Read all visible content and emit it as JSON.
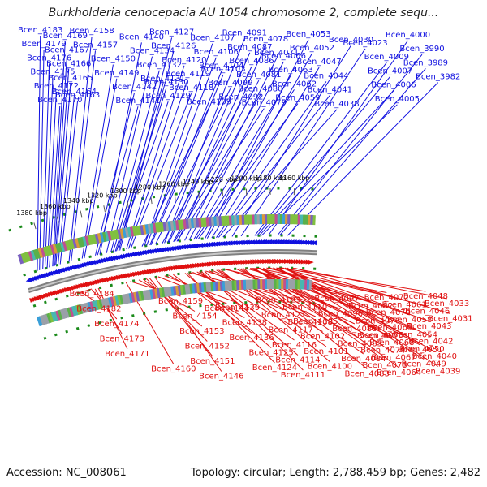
{
  "title": "Burkholderia cenocepacia AU 1054 chromosome 2, complete sequ...",
  "accession": "Accession: NC_008061",
  "summary": "Topology: circular; Length: 2,788,459 bp; Genes: 2,482",
  "colors": {
    "forward": "#1010e0",
    "reverse": "#e01010",
    "backbone": "#808080",
    "ticks": "#1a8a1a"
  },
  "scale": {
    "unit": "kbp",
    "range_kbp": [
      1150,
      1390
    ],
    "ticks": [
      1160,
      1180,
      1200,
      1220,
      1240,
      1260,
      1280,
      1300,
      1320,
      1340,
      1360,
      1380
    ],
    "tick_labels": [
      "1160 kbp",
      "1180 kbp",
      "1200 kbp",
      "1220 kbp",
      "1240 kbp",
      "1260 kbp",
      "1280 kbp",
      "1300 kbp",
      "1320 kbp",
      "1340 kbp",
      "1360 kbp",
      "1380 kbp"
    ]
  },
  "forward_genes": [
    {
      "name": "Bcen_4176",
      "kbp": 1384
    },
    {
      "name": "Bcen_4170",
      "kbp": 1378
    },
    {
      "name": "Bcen_4169",
      "kbp": 1375
    },
    {
      "name": "Bcen_4165",
      "kbp": 1372
    },
    {
      "name": "Bcen_4175",
      "kbp": 1382
    },
    {
      "name": "Bcen_4158",
      "kbp": 1360
    },
    {
      "name": "Bcen_4164",
      "kbp": 1370
    },
    {
      "name": "Bcen_4179",
      "kbp": 1387
    },
    {
      "name": "Bcen_4163",
      "kbp": 1368
    },
    {
      "name": "Bcen_4172",
      "kbp": 1380
    },
    {
      "name": "Bcen_4157",
      "kbp": 1358
    },
    {
      "name": "Bcen_4166",
      "kbp": 1373
    },
    {
      "name": "Bcen_4183",
      "kbp": 1389
    },
    {
      "name": "Bcen_4167",
      "kbp": 1374
    },
    {
      "name": "Bcen_4149",
      "kbp": 1346
    },
    {
      "name": "Bcen_4150",
      "kbp": 1348
    },
    {
      "name": "Bcen_4132",
      "kbp": 1322
    },
    {
      "name": "Bcen_4142",
      "kbp": 1336
    },
    {
      "name": "Bcen_4131",
      "kbp": 1320
    },
    {
      "name": "Bcen_4130",
      "kbp": 1318
    },
    {
      "name": "Bcen_4126",
      "kbp": 1314
    },
    {
      "name": "Bcen_4141",
      "kbp": 1334
    },
    {
      "name": "Bcen_4140",
      "kbp": 1332
    },
    {
      "name": "Bcen_4134",
      "kbp": 1326
    },
    {
      "name": "Bcen_4129",
      "kbp": 1317
    },
    {
      "name": "Bcen_4127",
      "kbp": 1315
    },
    {
      "name": "Bcen_4120",
      "kbp": 1308
    },
    {
      "name": "Bcen_4119",
      "kbp": 1306
    },
    {
      "name": "Bcen_4118",
      "kbp": 1304
    },
    {
      "name": "Bcen_4106",
      "kbp": 1290
    },
    {
      "name": "Bcen_4104",
      "kbp": 1287
    },
    {
      "name": "Bcen_4099",
      "kbp": 1282
    },
    {
      "name": "Bcen_4107",
      "kbp": 1292
    },
    {
      "name": "Bcen_4103",
      "kbp": 1286
    },
    {
      "name": "Bcen_4109",
      "kbp": 1294
    },
    {
      "name": "Bcen_4092",
      "kbp": 1276
    },
    {
      "name": "Bcen_4087",
      "kbp": 1271
    },
    {
      "name": "Bcen_4080",
      "kbp": 1265
    },
    {
      "name": "Bcen_4079",
      "kbp": 1263
    },
    {
      "name": "Bcen_4078",
      "kbp": 1262
    },
    {
      "name": "Bcen_4091",
      "kbp": 1274
    },
    {
      "name": "Bcen_4086",
      "kbp": 1270
    },
    {
      "name": "Bcen_4081",
      "kbp": 1266
    },
    {
      "name": "Bcen_4059",
      "kbp": 1244
    },
    {
      "name": "Bcen_4063",
      "kbp": 1248
    },
    {
      "name": "Bcen_4053",
      "kbp": 1238
    },
    {
      "name": "Bcen_4062",
      "kbp": 1246
    },
    {
      "name": "Bcen_4071",
      "kbp": 1256
    },
    {
      "name": "Bcen_4066",
      "kbp": 1252
    },
    {
      "name": "Bcen_4044",
      "kbp": 1228
    },
    {
      "name": "Bcen_4038",
      "kbp": 1222
    },
    {
      "name": "Bcen_4041",
      "kbp": 1226
    },
    {
      "name": "Bcen_4052",
      "kbp": 1236
    },
    {
      "name": "Bcen_4047",
      "kbp": 1232
    },
    {
      "name": "Bcen_4006",
      "kbp": 1190
    },
    {
      "name": "Bcen_4005",
      "kbp": 1188
    },
    {
      "name": "Bcen_4007",
      "kbp": 1192
    },
    {
      "name": "Bcen_4023",
      "kbp": 1206
    },
    {
      "name": "Bcen_4009",
      "kbp": 1194
    },
    {
      "name": "Bcen_4030",
      "kbp": 1214
    },
    {
      "name": "Bcen_3989",
      "kbp": 1172
    },
    {
      "name": "Bcen_3982",
      "kbp": 1165
    },
    {
      "name": "Bcen_3990",
      "kbp": 1174
    },
    {
      "name": "Bcen_4000",
      "kbp": 1182
    }
  ],
  "reverse_genes": [
    {
      "name": "Bcen_4031",
      "kbp": 1158
    },
    {
      "name": "Bcen_4033",
      "kbp": 1160
    },
    {
      "name": "Bcen_4048",
      "kbp": 1172
    },
    {
      "name": "Bcen_4051",
      "kbp": 1175
    },
    {
      "name": "Bcen_4054",
      "kbp": 1178
    },
    {
      "name": "Bcen_4039",
      "kbp": 1165
    },
    {
      "name": "Bcen_4072",
      "kbp": 1194
    },
    {
      "name": "Bcen_4058",
      "kbp": 1181
    },
    {
      "name": "Bcen_4040",
      "kbp": 1167
    },
    {
      "name": "Bcen_4074",
      "kbp": 1196
    },
    {
      "name": "Bcen_4061",
      "kbp": 1184
    },
    {
      "name": "Bcen_4042",
      "kbp": 1169
    },
    {
      "name": "Bcen_4077",
      "kbp": 1198
    },
    {
      "name": "Bcen_4064",
      "kbp": 1187
    },
    {
      "name": "Bcen_4043",
      "kbp": 1170
    },
    {
      "name": "Bcen_4082",
      "kbp": 1203
    },
    {
      "name": "Bcen_4067",
      "kbp": 1190
    },
    {
      "name": "Bcen_4046",
      "kbp": 1171
    },
    {
      "name": "Bcen_4083",
      "kbp": 1205
    },
    {
      "name": "Bcen_4068",
      "kbp": 1191
    },
    {
      "name": "Bcen_4049",
      "kbp": 1173
    },
    {
      "name": "Bcen_4084",
      "kbp": 1207
    },
    {
      "name": "Bcen_4069",
      "kbp": 1192
    },
    {
      "name": "Bcen_4050",
      "kbp": 1174
    },
    {
      "name": "Bcen_4085",
      "kbp": 1209
    },
    {
      "name": "Bcen_4070",
      "kbp": 1193
    },
    {
      "name": "Bcen_4088",
      "kbp": 1212
    },
    {
      "name": "Bcen_4073",
      "kbp": 1195
    },
    {
      "name": "Bcen_4075",
      "kbp": 1197
    },
    {
      "name": "Bcen_4076",
      "kbp": 1199
    },
    {
      "name": "Bcen_4096",
      "kbp": 1220
    },
    {
      "name": "Bcen_4100",
      "kbp": 1226
    },
    {
      "name": "Bcen_4101",
      "kbp": 1228
    },
    {
      "name": "Bcen_4102",
      "kbp": 1230
    },
    {
      "name": "Bcen_4105",
      "kbp": 1234
    },
    {
      "name": "Bcen_4108",
      "kbp": 1237
    },
    {
      "name": "Bcen_4110",
      "kbp": 1240
    },
    {
      "name": "Bcen_4114",
      "kbp": 1244
    },
    {
      "name": "Bcen_4111",
      "kbp": 1241
    },
    {
      "name": "Bcen_4097",
      "kbp": 1222
    },
    {
      "name": "Bcen_4116",
      "kbp": 1246
    },
    {
      "name": "Bcen_4117",
      "kbp": 1248
    },
    {
      "name": "Bcen_4121",
      "kbp": 1252
    },
    {
      "name": "Bcen_4123",
      "kbp": 1255
    },
    {
      "name": "Bcen_4124",
      "kbp": 1257
    },
    {
      "name": "Bcen_4125",
      "kbp": 1259
    },
    {
      "name": "Bcen_4136",
      "kbp": 1270
    },
    {
      "name": "Bcen_4138",
      "kbp": 1274
    },
    {
      "name": "Bcen_4139",
      "kbp": 1278
    },
    {
      "name": "Bcen_4144",
      "kbp": 1284
    },
    {
      "name": "Bcen_4146",
      "kbp": 1287
    },
    {
      "name": "Bcen_4151",
      "kbp": 1292
    },
    {
      "name": "Bcen_4152",
      "kbp": 1295
    },
    {
      "name": "Bcen_4153",
      "kbp": 1298
    },
    {
      "name": "Bcen_4154",
      "kbp": 1302
    },
    {
      "name": "Bcen_4159",
      "kbp": 1310
    },
    {
      "name": "Bcen_4160",
      "kbp": 1314
    },
    {
      "name": "Bcen_4171",
      "kbp": 1340
    },
    {
      "name": "Bcen_4173",
      "kbp": 1343
    },
    {
      "name": "Bcen_4174",
      "kbp": 1346
    },
    {
      "name": "Bcen_4182",
      "kbp": 1356
    },
    {
      "name": "Bcen_4184",
      "kbp": 1360
    }
  ]
}
